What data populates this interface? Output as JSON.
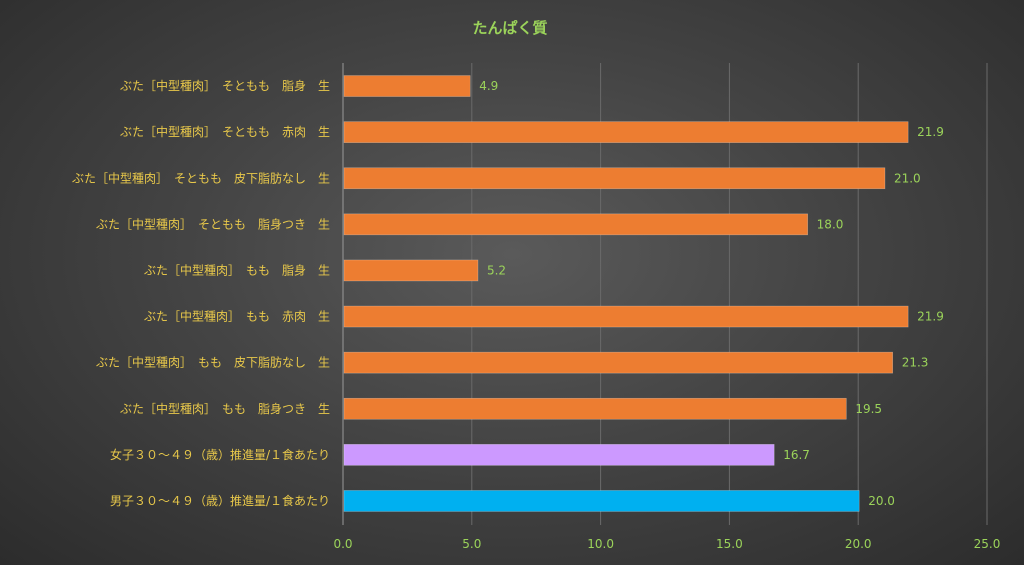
{
  "chart_data": {
    "type": "bar",
    "orientation": "horizontal",
    "title": "たんぱく質",
    "categories": [
      "ぶた［中型種肉］　そともも　脂身　生",
      "ぶた［中型種肉］　そともも　赤肉　生",
      "ぶた［中型種肉］　そともも　皮下脂肪なし　生",
      "ぶた［中型種肉］　そともも　脂身つき　生",
      "ぶた［中型種肉］　もも　脂身　生",
      "ぶた［中型種肉］　もも　赤肉　生",
      "ぶた［中型種肉］　もも　皮下脂肪なし　生",
      "ぶた［中型種肉］　もも　脂身つき　生",
      "女子３０～４９（歳）推進量/１食あたり",
      "男子３０～４９（歳）推進量/１食あたり"
    ],
    "values": [
      4.9,
      21.9,
      21.0,
      18.0,
      5.2,
      21.9,
      21.3,
      19.5,
      16.7,
      20.0
    ],
    "value_labels": [
      "4.9",
      "21.9",
      "21.0",
      "18.0",
      "5.2",
      "21.9",
      "21.3",
      "19.5",
      "16.7",
      "20.0"
    ],
    "colors": [
      "#ed7d31",
      "#ed7d31",
      "#ed7d31",
      "#ed7d31",
      "#ed7d31",
      "#ed7d31",
      "#ed7d31",
      "#ed7d31",
      "#cc99ff",
      "#00b0f0"
    ],
    "xlim": [
      0,
      25
    ],
    "xticks": [
      "0.0",
      "5.0",
      "10.0",
      "15.0",
      "20.0",
      "25.0"
    ],
    "grid": true,
    "legend": "none"
  }
}
